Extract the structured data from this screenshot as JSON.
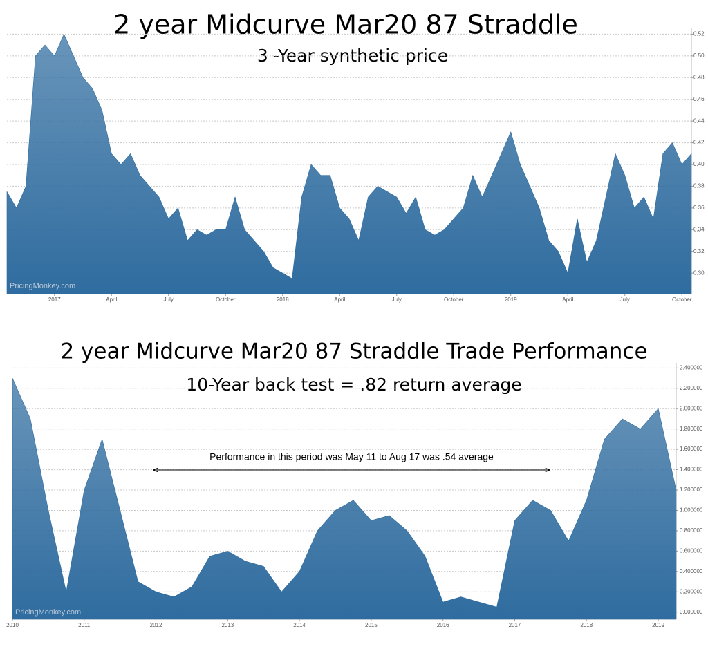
{
  "chart_data": [
    {
      "type": "area",
      "title": "2 year Midcurve Mar20 87 Straddle",
      "subtitle": "3 -Year synthetic price",
      "watermark": "PricingMonkey.com",
      "categories": [
        null,
        null,
        null,
        null,
        null,
        "2017",
        null,
        null,
        null,
        null,
        null,
        "April",
        null,
        null,
        null,
        null,
        null,
        "July",
        null,
        null,
        null,
        null,
        null,
        "October",
        null,
        null,
        null,
        null,
        null,
        "2018",
        null,
        null,
        null,
        null,
        null,
        "April",
        null,
        null,
        null,
        null,
        null,
        "July",
        null,
        null,
        null,
        null,
        null,
        "October",
        null,
        null,
        null,
        null,
        null,
        "2019",
        null,
        null,
        null,
        null,
        null,
        "April",
        null,
        null,
        null,
        null,
        null,
        "July",
        null,
        null,
        null,
        null,
        null,
        "October",
        null
      ],
      "values": [
        0.375,
        0.36,
        0.38,
        0.5,
        0.51,
        0.5,
        0.52,
        0.5,
        0.48,
        0.47,
        0.45,
        0.41,
        0.4,
        0.41,
        0.39,
        0.38,
        0.37,
        0.35,
        0.36,
        0.33,
        0.34,
        0.335,
        0.34,
        0.34,
        0.37,
        0.34,
        0.33,
        0.32,
        0.305,
        0.3,
        0.295,
        0.37,
        0.4,
        0.39,
        0.39,
        0.36,
        0.35,
        0.33,
        0.37,
        0.38,
        0.375,
        0.37,
        0.355,
        0.37,
        0.34,
        0.335,
        0.34,
        0.35,
        0.36,
        0.39,
        0.37,
        0.39,
        0.41,
        0.43,
        0.4,
        0.38,
        0.36,
        0.33,
        0.32,
        0.3,
        0.35,
        0.31,
        0.33,
        0.37,
        0.41,
        0.39,
        0.36,
        0.37,
        0.35,
        0.41,
        0.42,
        0.4,
        0.41
      ],
      "color": "#2f6c9f",
      "ylim": [
        0.281,
        0.526
      ],
      "yticks": [
        {
          "value": 0.3,
          "label": "0.30"
        },
        0.32,
        0.34,
        0.36,
        0.38,
        {
          "value": 0.4,
          "label": "0.40"
        },
        0.42,
        0.44,
        0.46,
        0.48,
        {
          "value": 0.5,
          "label": "0.50"
        },
        0.52
      ],
      "grid": true
    },
    {
      "type": "area",
      "title": "2 year Midcurve Mar20 87 Straddle Trade Performance",
      "subtitle": "10-Year back test = .82 return average",
      "watermark": "PricingMonkey.com",
      "annotation": "Performance in this period was May 11 to Aug 17 was .54 average",
      "categories": [
        "2010",
        null,
        null,
        null,
        "2011",
        null,
        null,
        null,
        "2012",
        null,
        null,
        null,
        "2013",
        null,
        null,
        null,
        "2014",
        null,
        null,
        null,
        "2015",
        null,
        null,
        null,
        "2016",
        null,
        null,
        null,
        "2017",
        null,
        null,
        null,
        "2018",
        null,
        null,
        null,
        "2019",
        null
      ],
      "values": [
        2.3,
        1.9,
        1.0,
        0.2,
        1.2,
        1.7,
        1.0,
        0.3,
        0.2,
        0.15,
        0.25,
        0.55,
        0.6,
        0.5,
        0.45,
        0.2,
        0.4,
        0.8,
        1.0,
        1.1,
        0.9,
        0.95,
        0.8,
        0.55,
        0.1,
        0.15,
        0.1,
        0.05,
        0.9,
        1.1,
        1.0,
        0.7,
        1.1,
        1.7,
        1.9,
        1.8,
        2.0,
        1.2
      ],
      "color": "#2f6c9f",
      "ylim": [
        -0.07,
        2.45
      ],
      "yticks": [
        {
          "value": 0,
          "label": "0.000000"
        },
        {
          "value": 0.2,
          "label": "0.200000"
        },
        {
          "value": 0.4,
          "label": "0.400000"
        },
        {
          "value": 0.6,
          "label": "0.600000"
        },
        {
          "value": 0.8,
          "label": "0.800000"
        },
        {
          "value": 1.0,
          "label": "1.000000"
        },
        {
          "value": 1.2,
          "label": "1.200000"
        },
        {
          "value": 1.4,
          "label": "1.400000"
        },
        {
          "value": 1.6,
          "label": "1.600000"
        },
        {
          "value": 1.8,
          "label": "1.800000"
        },
        {
          "value": 2.0,
          "label": "2.000000"
        },
        {
          "value": 2.2,
          "label": "2.200000"
        },
        {
          "value": 2.4,
          "label": "2.400000"
        }
      ],
      "grid": true
    }
  ]
}
